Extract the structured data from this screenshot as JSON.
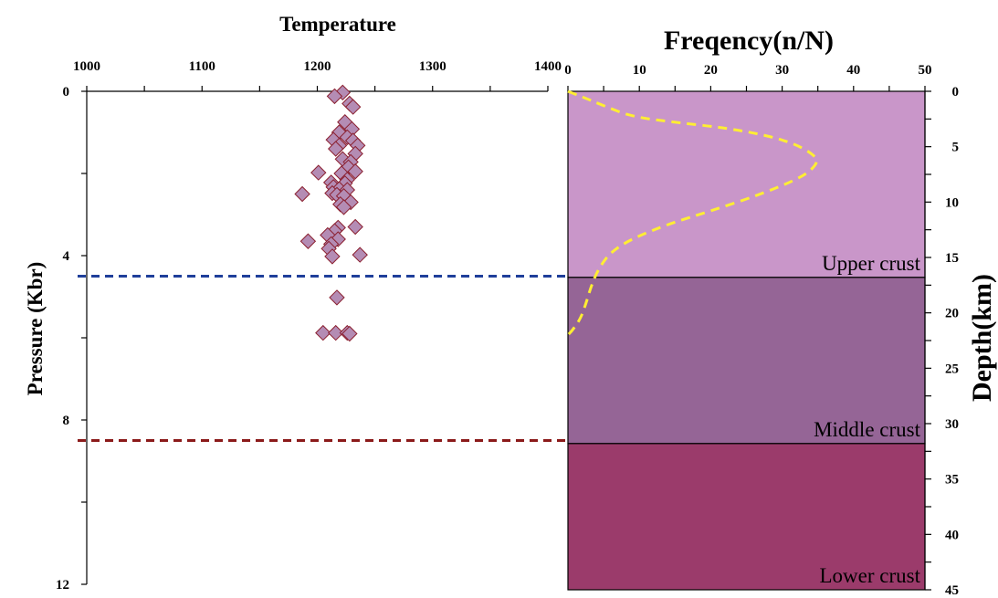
{
  "chart_data": [
    {
      "type": "scatter",
      "xlabel": "Temperature",
      "ylabel": "Pressure (Kbr)",
      "xlim": [
        1000,
        1400
      ],
      "ylim": [
        0,
        12
      ],
      "x_ticks": [
        1000,
        1100,
        1200,
        1300,
        1400
      ],
      "y_ticks": [
        0,
        4,
        8,
        12
      ],
      "marker_color": "#b48cb4",
      "marker_edge_color": "#8b2030",
      "series": [
        {
          "points": [
            {
              "x": 1222,
              "y": 0.03
            },
            {
              "x": 1215,
              "y": 0.12
            },
            {
              "x": 1228,
              "y": 0.3
            },
            {
              "x": 1231,
              "y": 0.38
            },
            {
              "x": 1224,
              "y": 0.75
            },
            {
              "x": 1230,
              "y": 0.92
            },
            {
              "x": 1219,
              "y": 1.0
            },
            {
              "x": 1226,
              "y": 1.12
            },
            {
              "x": 1214,
              "y": 1.18
            },
            {
              "x": 1231,
              "y": 1.2
            },
            {
              "x": 1219,
              "y": 1.32
            },
            {
              "x": 1235,
              "y": 1.32
            },
            {
              "x": 1216,
              "y": 1.4
            },
            {
              "x": 1233,
              "y": 1.52
            },
            {
              "x": 1222,
              "y": 1.65
            },
            {
              "x": 1229,
              "y": 1.72
            },
            {
              "x": 1227,
              "y": 1.85
            },
            {
              "x": 1233,
              "y": 1.95
            },
            {
              "x": 1201,
              "y": 1.98
            },
            {
              "x": 1221,
              "y": 2.0
            },
            {
              "x": 1226,
              "y": 2.15
            },
            {
              "x": 1212,
              "y": 2.22
            },
            {
              "x": 1224,
              "y": 2.24
            },
            {
              "x": 1214,
              "y": 2.33
            },
            {
              "x": 1219,
              "y": 2.38
            },
            {
              "x": 1226,
              "y": 2.4
            },
            {
              "x": 1213,
              "y": 2.48
            },
            {
              "x": 1187,
              "y": 2.5
            },
            {
              "x": 1217,
              "y": 2.52
            },
            {
              "x": 1223,
              "y": 2.55
            },
            {
              "x": 1229,
              "y": 2.7
            },
            {
              "x": 1220,
              "y": 2.75
            },
            {
              "x": 1223,
              "y": 2.82
            },
            {
              "x": 1233,
              "y": 3.3
            },
            {
              "x": 1218,
              "y": 3.32
            },
            {
              "x": 1215,
              "y": 3.4
            },
            {
              "x": 1209,
              "y": 3.5
            },
            {
              "x": 1218,
              "y": 3.6
            },
            {
              "x": 1192,
              "y": 3.65
            },
            {
              "x": 1212,
              "y": 3.72
            },
            {
              "x": 1210,
              "y": 3.83
            },
            {
              "x": 1237,
              "y": 3.98
            },
            {
              "x": 1213,
              "y": 4.02
            },
            {
              "x": 1217,
              "y": 5.02
            },
            {
              "x": 1205,
              "y": 5.88
            },
            {
              "x": 1216,
              "y": 5.88
            },
            {
              "x": 1226,
              "y": 5.88
            },
            {
              "x": 1228,
              "y": 5.9
            }
          ]
        }
      ],
      "reference_lines": [
        {
          "y": 4.5,
          "color": "#1f3f9a"
        },
        {
          "y": 8.5,
          "color": "#8b1a1a"
        }
      ]
    },
    {
      "type": "line",
      "title": "Freqency(n/N)",
      "ylabel": "Depth(km)",
      "xlim": [
        0,
        50
      ],
      "ylim": [
        0,
        45
      ],
      "x_ticks": [
        0,
        10,
        20,
        30,
        40,
        50
      ],
      "y_ticks": [
        0,
        5,
        10,
        15,
        20,
        25,
        30,
        35,
        40,
        45
      ],
      "line_color": "#ffee33",
      "layers": [
        {
          "label": "Upper crust",
          "top": 0,
          "bottom": 16.8,
          "color": "#c996c9"
        },
        {
          "label": "Middle crust",
          "top": 16.8,
          "bottom": 31.8,
          "color": "#956596"
        },
        {
          "label": "Lower crust",
          "top": 31.8,
          "bottom": 45,
          "color": "#9b3b6b"
        }
      ],
      "series": [
        {
          "points": [
            {
              "x": 0,
              "y": 0
            },
            {
              "x": 2,
              "y": 0.5
            },
            {
              "x": 5,
              "y": 1.3
            },
            {
              "x": 9,
              "y": 2.3
            },
            {
              "x": 15,
              "y": 2.8
            },
            {
              "x": 22,
              "y": 3.3
            },
            {
              "x": 28,
              "y": 4.0
            },
            {
              "x": 32,
              "y": 4.8
            },
            {
              "x": 34.6,
              "y": 5.8
            },
            {
              "x": 35,
              "y": 6.5
            },
            {
              "x": 33,
              "y": 7.7
            },
            {
              "x": 27,
              "y": 9.3
            },
            {
              "x": 20,
              "y": 10.8
            },
            {
              "x": 14,
              "y": 12.0
            },
            {
              "x": 9,
              "y": 13.3
            },
            {
              "x": 6,
              "y": 14.5
            },
            {
              "x": 4.3,
              "y": 16.0
            },
            {
              "x": 3.3,
              "y": 17.5
            },
            {
              "x": 2.6,
              "y": 19.0
            },
            {
              "x": 1.8,
              "y": 20.5
            },
            {
              "x": 0.6,
              "y": 21.6
            },
            {
              "x": 0,
              "y": 22.0
            }
          ]
        }
      ]
    }
  ]
}
